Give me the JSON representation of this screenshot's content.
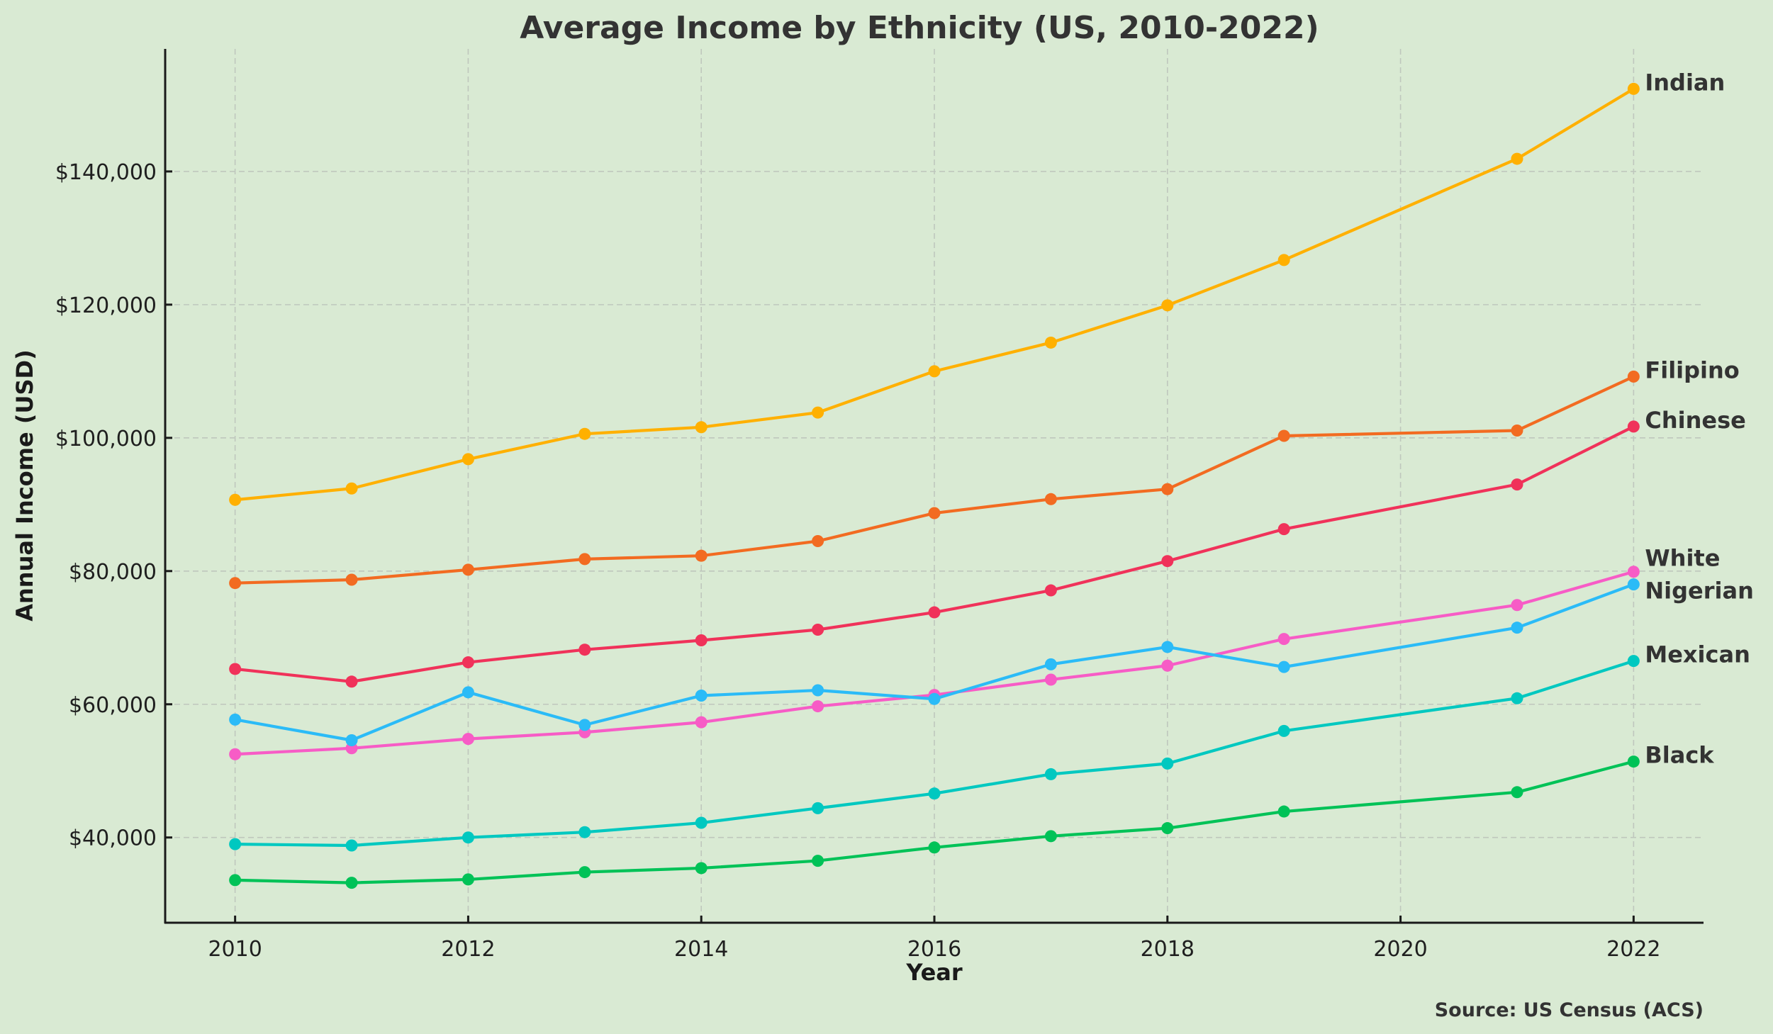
{
  "chart_data": {
    "type": "line",
    "title": "Average Income by Ethnicity (US, 2010-2022)",
    "xlabel": "Year",
    "ylabel": "Annual Income (USD)",
    "source": "Source: US Census (ACS)",
    "x": [
      2010,
      2011,
      2012,
      2013,
      2014,
      2015,
      2016,
      2017,
      2018,
      2019,
      2021,
      2022
    ],
    "xlim": [
      2009.4,
      2022.6
    ],
    "ylim": [
      27200,
      158400
    ],
    "xticks": [
      2010,
      2012,
      2014,
      2016,
      2018,
      2020,
      2022
    ],
    "xtick_labels": [
      "2010",
      "2012",
      "2014",
      "2016",
      "2018",
      "2020",
      "2022"
    ],
    "yticks": [
      40000,
      60000,
      80000,
      100000,
      120000,
      140000
    ],
    "ytick_labels": [
      "$40,000",
      "$60,000",
      "$80,000",
      "$100,000",
      "$120,000",
      "$140,000"
    ],
    "grid": true,
    "legend": "direct labels at line ends (right)",
    "series": [
      {
        "name": "Indian",
        "color": "#ffb000",
        "values": [
          90700,
          92400,
          96800,
          100600,
          101600,
          103800,
          110000,
          114300,
          119900,
          126700,
          141900,
          152400
        ]
      },
      {
        "name": "Filipino",
        "color": "#f26b21",
        "values": [
          78200,
          78700,
          80200,
          81800,
          82300,
          84500,
          88700,
          90800,
          92300,
          100300,
          101100,
          109200
        ]
      },
      {
        "name": "Chinese",
        "color": "#f0325a",
        "values": [
          65300,
          63400,
          66300,
          68200,
          69600,
          71200,
          73800,
          77100,
          81500,
          86300,
          93000,
          101700
        ]
      },
      {
        "name": "White",
        "color": "#f75cc6",
        "values": [
          52500,
          53400,
          54800,
          55800,
          57300,
          59700,
          61400,
          63700,
          65800,
          69800,
          74900,
          79900
        ]
      },
      {
        "name": "Nigerian",
        "color": "#2bbbf7",
        "values": [
          57700,
          54600,
          61800,
          56900,
          61300,
          62100,
          60800,
          66000,
          68600,
          65600,
          71500,
          78000
        ]
      },
      {
        "name": "Mexican",
        "color": "#00c8c0",
        "values": [
          39000,
          38800,
          40000,
          40800,
          42200,
          44400,
          46600,
          49500,
          51100,
          56000,
          60900,
          66500
        ]
      },
      {
        "name": "Black",
        "color": "#00c257",
        "values": [
          33600,
          33200,
          33700,
          34800,
          35400,
          36500,
          38500,
          40200,
          41400,
          43900,
          46800,
          51400
        ]
      }
    ]
  }
}
